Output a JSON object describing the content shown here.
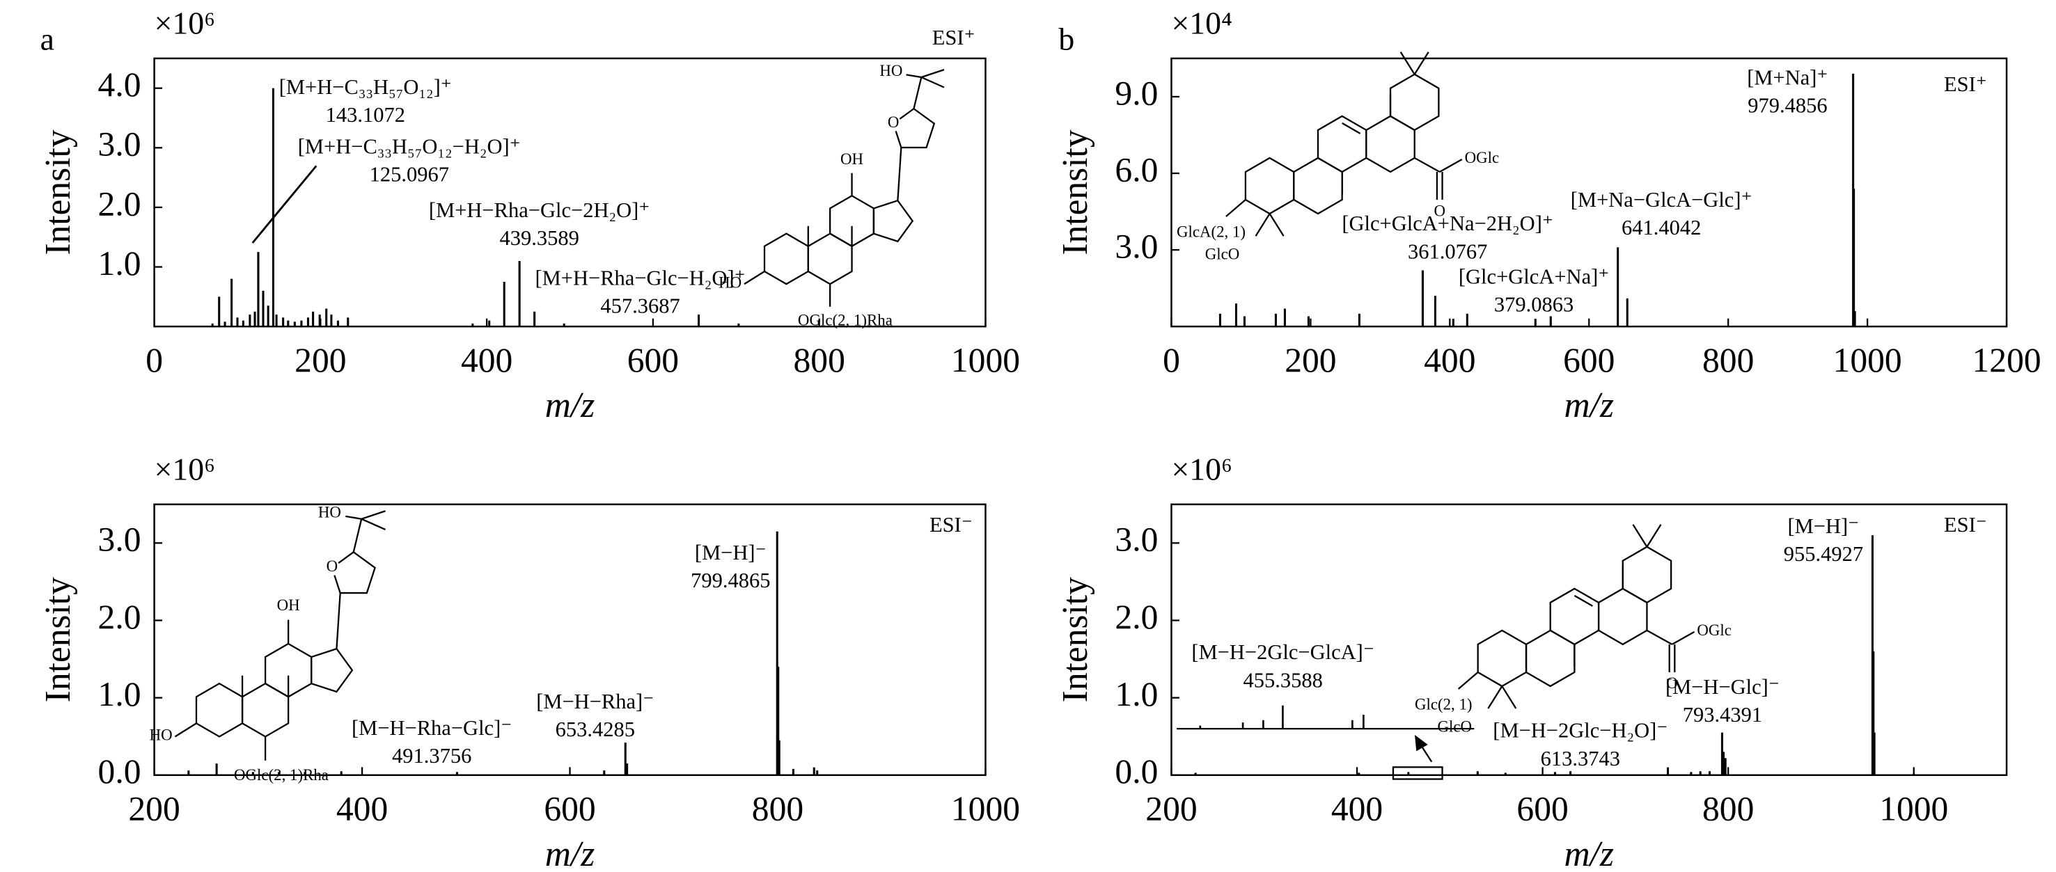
{
  "panel_labels": [
    "a",
    "b"
  ],
  "chart_data": [
    {
      "type": "bar",
      "multiplier": "×10⁶",
      "xlabel": "m/z",
      "ylabel": "Intensity",
      "mode": "ESI⁺",
      "color": "#000000",
      "xlim": [
        0,
        1000
      ],
      "xticks": [
        0,
        200,
        400,
        600,
        800,
        1000
      ],
      "ylim": [
        0,
        4.5
      ],
      "yticks": [
        {
          "value": 1,
          "label": "1.0"
        },
        {
          "value": 2,
          "label": "2.0"
        },
        {
          "value": 3,
          "label": "3.0"
        },
        {
          "value": 4,
          "label": "4.0"
        }
      ],
      "x": [
        70,
        78,
        85,
        93,
        100,
        107,
        115,
        121,
        125.0967,
        131,
        137,
        143.1072,
        147,
        155,
        161,
        169,
        177,
        185,
        191,
        199,
        207,
        213,
        221,
        233,
        383,
        403,
        421,
        439.3589,
        457.3687,
        493,
        655,
        703
      ],
      "values": [
        0.05,
        0.5,
        0.08,
        0.8,
        0.15,
        0.1,
        0.2,
        0.25,
        1.25,
        0.6,
        0.35,
        4.0,
        0.2,
        0.15,
        0.1,
        0.08,
        0.1,
        0.15,
        0.25,
        0.2,
        0.3,
        0.2,
        0.1,
        0.15,
        0.05,
        0.1,
        0.75,
        1.1,
        0.25,
        0.05,
        0.2,
        0.05
      ],
      "annotations": [
        {
          "text": "[M+H−C₃₃H₅₇O₁₂]⁺",
          "mz": 143.1072
        },
        {
          "text": "[M+H−C₃₃H₅₇O₁₂−H₂O]⁺",
          "mz": 125.0967
        },
        {
          "text": "[M+H−Rha−Glc−2H₂O]⁺",
          "mz": 439.3589
        },
        {
          "text": "[M+H−Rha−Glc−H₂O]⁺",
          "mz": 457.3687
        }
      ],
      "structure_labels": [
        "HO",
        "OH",
        "O",
        "HO",
        "OGlc(2, 1)Rha"
      ]
    },
    {
      "type": "bar",
      "multiplier": "×10⁴",
      "xlabel": "m/z",
      "ylabel": "Intensity",
      "mode": "ESI⁺",
      "color": "#000000",
      "xlim": [
        0,
        1200
      ],
      "xticks": [
        0,
        200,
        400,
        600,
        800,
        1000,
        1200
      ],
      "ylim": [
        0,
        10.5
      ],
      "yticks": [
        {
          "value": 3,
          "label": "3.0"
        },
        {
          "value": 6,
          "label": "6.0"
        },
        {
          "value": 9,
          "label": "9.0"
        }
      ],
      "x": [
        70,
        93,
        105,
        150,
        163,
        197,
        270,
        361.0767,
        379.0863,
        405,
        425,
        523,
        545,
        641.4042,
        655,
        979.4856,
        980.49,
        982
      ],
      "values": [
        0.5,
        0.9,
        0.4,
        0.5,
        0.7,
        0.4,
        0.5,
        2.2,
        1.2,
        0.3,
        0.5,
        0.3,
        0.4,
        3.1,
        1.1,
        9.9,
        5.4,
        0.6
      ],
      "annotations": [
        {
          "text": "[M+Na]⁺",
          "mz": 979.4856
        },
        {
          "text": "[M+Na−GlcA−Glc]⁺",
          "mz": 641.4042
        },
        {
          "text": "[Glc+GlcA+Na−2H₂O]⁺",
          "mz": 361.0767
        },
        {
          "text": "[Glc+GlcA+Na]⁺",
          "mz": 379.0863
        }
      ],
      "structure_labels": [
        "OGlc",
        "O",
        "GlcA(2, 1)",
        "GlcO"
      ]
    },
    {
      "type": "bar",
      "multiplier": "×10⁶",
      "xlabel": "m/z",
      "ylabel": "Intensity",
      "mode": "ESI⁻",
      "color": "#000000",
      "xlim": [
        200,
        1000
      ],
      "xticks": [
        200,
        400,
        600,
        800,
        1000
      ],
      "ylim": [
        0,
        3.5
      ],
      "yticks": [
        {
          "value": 0,
          "label": "0.0"
        },
        {
          "value": 1,
          "label": "1.0"
        },
        {
          "value": 2,
          "label": "2.0"
        },
        {
          "value": 3,
          "label": "3.0"
        }
      ],
      "x": [
        233,
        260,
        295,
        320,
        345,
        380,
        491.3756,
        633,
        653.4285,
        655,
        799.4865,
        800.49,
        801.5,
        815,
        835,
        838
      ],
      "values": [
        0.06,
        0.15,
        0.04,
        0.04,
        0.04,
        0.05,
        0.04,
        0.06,
        0.42,
        0.15,
        3.15,
        1.4,
        0.45,
        0.08,
        0.1,
        0.06
      ],
      "annotations": [
        {
          "text": "[M−H]⁻",
          "mz": 799.4865
        },
        {
          "text": "[M−H−Rha]⁻",
          "mz": 653.4285
        },
        {
          "text": "[M−H−Rha−Glc]⁻",
          "mz": 491.3756
        }
      ],
      "structure_labels": [
        "HO",
        "OH",
        "O",
        "HO",
        "OGlc(2, 1)Rha"
      ]
    },
    {
      "type": "bar",
      "multiplier": "×10⁶",
      "xlabel": "m/z",
      "ylabel": "Intensity",
      "mode": "ESI⁻",
      "color": "#000000",
      "xlim": [
        200,
        1100
      ],
      "xticks": [
        200,
        400,
        600,
        800,
        1000
      ],
      "ylim": [
        0,
        3.5
      ],
      "yticks": [
        {
          "value": 0,
          "label": "0.0"
        },
        {
          "value": 1,
          "label": "1.0"
        },
        {
          "value": 2,
          "label": "2.0"
        },
        {
          "value": 3,
          "label": "3.0"
        }
      ],
      "x": [
        226,
        402,
        455.3588,
        530,
        560,
        613.3743,
        630,
        735,
        760,
        770,
        780,
        793.4391,
        795,
        797,
        955.4927,
        956.5,
        957.5,
        1000
      ],
      "values": [
        0.03,
        0.03,
        0.04,
        0.05,
        0.03,
        0.04,
        0.05,
        0.1,
        0.04,
        0.05,
        0.05,
        0.55,
        0.3,
        0.22,
        3.1,
        1.6,
        0.55,
        0.02
      ],
      "annotations": [
        {
          "text": "[M−H]⁻",
          "mz": 955.4927
        },
        {
          "text": "[M−H−2Glc−GlcA]⁻",
          "mz": 455.3588
        },
        {
          "text": "[M−H−2Glc−H₂O]⁻",
          "mz": 613.3743
        },
        {
          "text": "[M−H−Glc]⁻",
          "mz": 793.4391
        }
      ],
      "inset": {
        "base": 0.6,
        "x": [
          231,
          277,
          299,
          320,
          395,
          407
        ],
        "values": [
          0.64,
          0.68,
          0.71,
          0.9,
          0.71,
          0.78
        ]
      },
      "structure_labels": [
        "OGlc",
        "O",
        "Glc(2, 1)",
        "GlcO"
      ]
    }
  ]
}
